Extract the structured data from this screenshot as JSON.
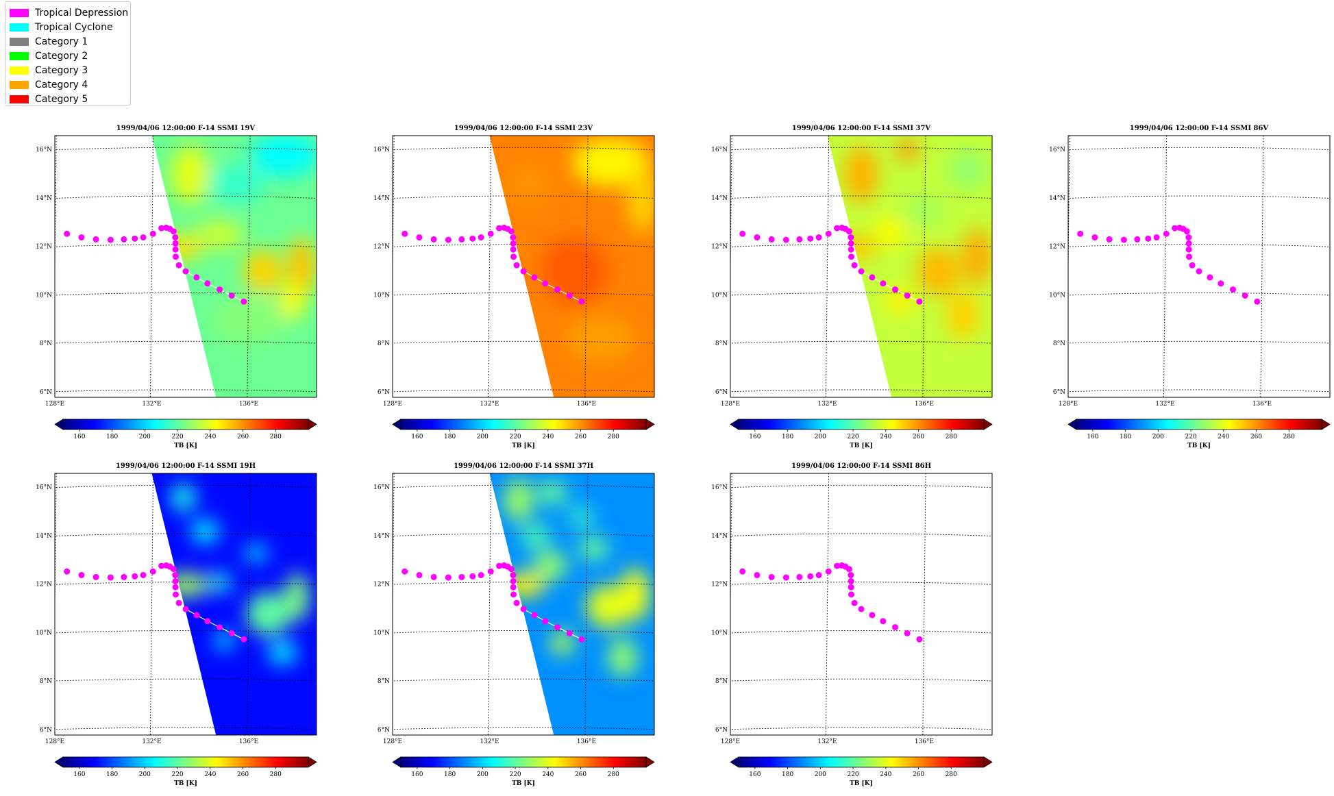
{
  "legend": [
    {
      "label": "Tropical Depression",
      "color": "#ff00ff"
    },
    {
      "label": "Tropical Cyclone",
      "color": "#00ffff"
    },
    {
      "label": "Category 1",
      "color": "#808080"
    },
    {
      "label": "Category 2",
      "color": "#00ff00"
    },
    {
      "label": "Category 3",
      "color": "#ffff00"
    },
    {
      "label": "Category 4",
      "color": "#ffa500"
    },
    {
      "label": "Category 5",
      "color": "#ff0000"
    }
  ],
  "lat_labels": [
    "16°N",
    "14°N",
    "12°N",
    "10°N",
    "8°N",
    "6°N"
  ],
  "lon_labels": [
    "128°E",
    "132°E",
    "136°E"
  ],
  "colorbar": {
    "ticks": [
      "160",
      "180",
      "200",
      "220",
      "240",
      "260",
      "280"
    ],
    "label": "TB [K]",
    "range": [
      150,
      300
    ]
  },
  "panels": [
    {
      "title": "1999/04/06 12:00:00  F-14 SSMI 19V",
      "swath": true,
      "mean_tb": 222,
      "palette": "19V"
    },
    {
      "title": "1999/04/06 12:00:00  F-14 SSMI 23V",
      "swath": true,
      "mean_tb": 262,
      "palette": "23V"
    },
    {
      "title": "1999/04/06 12:00:00  F-14 SSMI 37V",
      "swath": true,
      "mean_tb": 235,
      "palette": "37V"
    },
    {
      "title": "1999/04/06 12:00:00  F-14 SSMI 86V",
      "swath": false,
      "palette": "none"
    },
    {
      "title": "1999/04/06 12:00:00  F-14 SSMI 19H",
      "swath": true,
      "mean_tb": 170,
      "palette": "19H"
    },
    {
      "title": "1999/04/06 12:00:00  F-14 SSMI 37H",
      "swath": true,
      "mean_tb": 190,
      "palette": "37H"
    },
    {
      "title": "1999/04/06 12:00:00  F-14 SSMI 86H",
      "swath": false,
      "palette": "none"
    }
  ],
  "track": [
    {
      "lon": 128.5,
      "lat": 12.55
    },
    {
      "lon": 129.1,
      "lat": 12.4
    },
    {
      "lon": 129.7,
      "lat": 12.32
    },
    {
      "lon": 130.3,
      "lat": 12.3
    },
    {
      "lon": 130.85,
      "lat": 12.32
    },
    {
      "lon": 131.3,
      "lat": 12.35
    },
    {
      "lon": 131.65,
      "lat": 12.4
    },
    {
      "lon": 132.05,
      "lat": 12.55
    },
    {
      "lon": 132.4,
      "lat": 12.78
    },
    {
      "lon": 132.6,
      "lat": 12.8
    },
    {
      "lon": 132.75,
      "lat": 12.75
    },
    {
      "lon": 132.9,
      "lat": 12.65
    },
    {
      "lon": 132.97,
      "lat": 12.4
    },
    {
      "lon": 132.98,
      "lat": 12.15
    },
    {
      "lon": 132.98,
      "lat": 11.9
    },
    {
      "lon": 132.99,
      "lat": 11.6
    },
    {
      "lon": 133.12,
      "lat": 11.25
    },
    {
      "lon": 133.4,
      "lat": 11.0
    },
    {
      "lon": 133.85,
      "lat": 10.75
    },
    {
      "lon": 134.3,
      "lat": 10.5
    },
    {
      "lon": 134.8,
      "lat": 10.25
    },
    {
      "lon": 135.3,
      "lat": 10.0
    },
    {
      "lon": 135.8,
      "lat": 9.75
    }
  ]
}
